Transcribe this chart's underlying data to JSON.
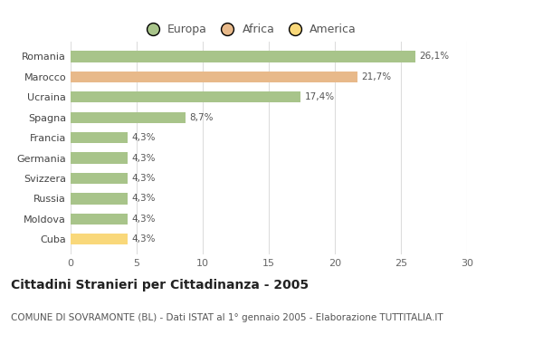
{
  "categories": [
    "Cuba",
    "Moldova",
    "Russia",
    "Svizzera",
    "Germania",
    "Francia",
    "Spagna",
    "Ucraina",
    "Marocco",
    "Romania"
  ],
  "values": [
    4.3,
    4.3,
    4.3,
    4.3,
    4.3,
    4.3,
    8.7,
    17.4,
    21.7,
    26.1
  ],
  "labels": [
    "4,3%",
    "4,3%",
    "4,3%",
    "4,3%",
    "4,3%",
    "4,3%",
    "8,7%",
    "17,4%",
    "21,7%",
    "26,1%"
  ],
  "colors": [
    "#f9d87a",
    "#a8c48a",
    "#a8c48a",
    "#a8c48a",
    "#a8c48a",
    "#a8c48a",
    "#a8c48a",
    "#a8c48a",
    "#e8b98a",
    "#a8c48a"
  ],
  "legend": [
    {
      "label": "Europa",
      "color": "#a8c48a"
    },
    {
      "label": "Africa",
      "color": "#e8b98a"
    },
    {
      "label": "America",
      "color": "#f9d87a"
    }
  ],
  "xlim": [
    0,
    30
  ],
  "xticks": [
    0,
    5,
    10,
    15,
    20,
    25,
    30
  ],
  "title": "Cittadini Stranieri per Cittadinanza - 2005",
  "subtitle": "COMUNE DI SOVRAMONTE (BL) - Dati ISTAT al 1° gennaio 2005 - Elaborazione TUTTITALIA.IT",
  "background_color": "#ffffff",
  "bar_height": 0.55,
  "label_fontsize": 7.5,
  "title_fontsize": 10,
  "subtitle_fontsize": 7.5
}
